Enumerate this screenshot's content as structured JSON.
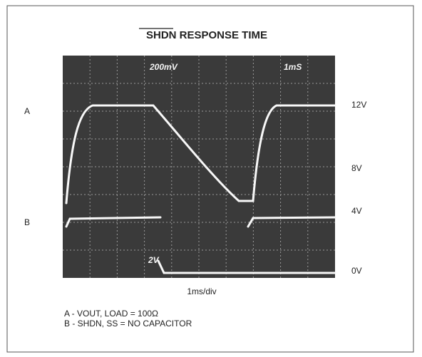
{
  "figure": {
    "title": "SHDN RESPONSE TIME",
    "scope_labels": {
      "volts_a": "200mV",
      "time": "1mS",
      "volts_b": "2V"
    },
    "trace_labels": {
      "a": "A",
      "b": "B"
    },
    "level_labels": [
      "12V",
      "8V",
      "4V",
      "0V"
    ],
    "x_label": "1ms/div",
    "notes": [
      "A - VOUT, LOAD = 100Ω",
      "B - SHDN, SS = NO CAPACITOR"
    ]
  }
}
